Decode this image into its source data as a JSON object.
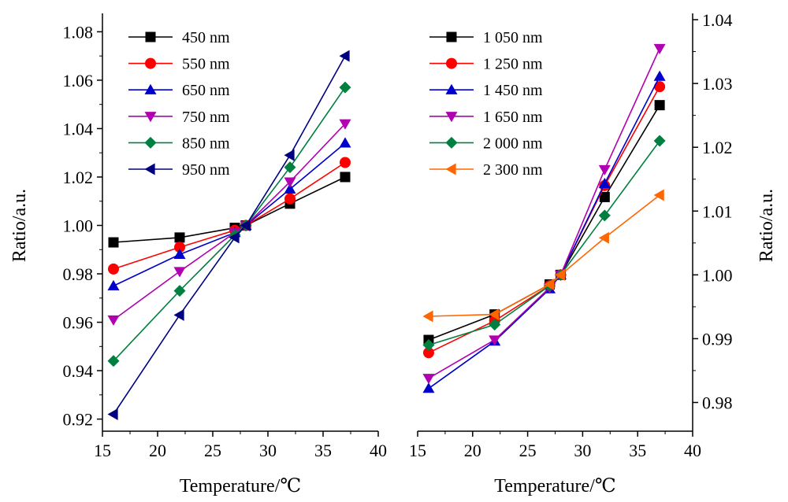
{
  "chart_data": [
    {
      "type": "line",
      "title": "",
      "xlabel": "Temperature/℃",
      "ylabel": "Ratio/a.u.",
      "x": [
        16,
        22,
        27,
        28,
        32,
        37
      ],
      "xlim": [
        15,
        40
      ],
      "ylim": [
        0.915,
        1.085
      ],
      "xticks": [
        15,
        20,
        25,
        30,
        35,
        40
      ],
      "yticks": [
        "0.92",
        "0.94",
        "0.96",
        "0.98",
        "1.00",
        "1.02",
        "1.04",
        "1.06",
        "1.08"
      ],
      "y_axis_side": "left",
      "legend_position": "top-left",
      "grid": false,
      "series": [
        {
          "name": "450 nm",
          "color": "#000000",
          "marker": "square",
          "values": [
            0.993,
            0.995,
            0.999,
            1.0,
            1.009,
            1.02
          ]
        },
        {
          "name": "550 nm",
          "color": "#ff0000",
          "marker": "circle",
          "values": [
            0.982,
            0.991,
            0.998,
            1.0,
            1.011,
            1.026
          ]
        },
        {
          "name": "650 nm",
          "color": "#0000cc",
          "marker": "triangle-up",
          "values": [
            0.975,
            0.988,
            0.997,
            1.0,
            1.015,
            1.034
          ]
        },
        {
          "name": "750 nm",
          "color": "#b000b0",
          "marker": "triangle-down",
          "values": [
            0.961,
            0.981,
            0.997,
            1.0,
            1.018,
            1.042
          ]
        },
        {
          "name": "850 nm",
          "color": "#008040",
          "marker": "diamond",
          "values": [
            0.944,
            0.973,
            0.996,
            1.0,
            1.024,
            1.057
          ]
        },
        {
          "name": "950 nm",
          "color": "#000080",
          "marker": "triangle-left",
          "values": [
            0.922,
            0.963,
            0.995,
            1.0,
            1.029,
            1.07
          ]
        }
      ]
    },
    {
      "type": "line",
      "title": "",
      "xlabel": "Temperature/℃",
      "ylabel": "Ratio/a.u.",
      "x": [
        16,
        22,
        27,
        28,
        32,
        37
      ],
      "xlim": [
        15,
        40
      ],
      "ylim": [
        0.9755,
        1.04
      ],
      "xticks": [
        15,
        20,
        25,
        30,
        35,
        40
      ],
      "yticks": [
        "0.98",
        "0.99",
        "1.00",
        "1.01",
        "1.02",
        "1.03",
        "1.04"
      ],
      "y_axis_side": "right",
      "legend_position": "top-left",
      "grid": false,
      "series": [
        {
          "name": "1 050 nm",
          "color": "#000000",
          "marker": "square",
          "values": [
            0.9898,
            0.9938,
            0.9985,
            1.0,
            1.0122,
            1.0266
          ]
        },
        {
          "name": "1 250 nm",
          "color": "#ff0000",
          "marker": "circle",
          "values": [
            0.9878,
            0.9928,
            0.9983,
            1.0,
            1.014,
            1.0295
          ]
        },
        {
          "name": "1 450 nm",
          "color": "#0000cc",
          "marker": "triangle-up",
          "values": [
            0.9822,
            0.9896,
            0.9978,
            1.0,
            1.0143,
            1.0311
          ]
        },
        {
          "name": "1 650 nm",
          "color": "#b000b0",
          "marker": "triangle-down",
          "values": [
            0.9838,
            0.9898,
            0.998,
            1.0,
            1.0165,
            1.0355
          ]
        },
        {
          "name": "2 000 nm",
          "color": "#008040",
          "marker": "diamond",
          "values": [
            0.989,
            0.9922,
            0.9983,
            1.0,
            1.0093,
            1.021
          ]
        },
        {
          "name": "2 300 nm",
          "color": "#ff6600",
          "marker": "triangle-left",
          "values": [
            0.9935,
            0.9938,
            0.9985,
            1.0,
            1.0058,
            1.0125
          ]
        }
      ]
    }
  ]
}
